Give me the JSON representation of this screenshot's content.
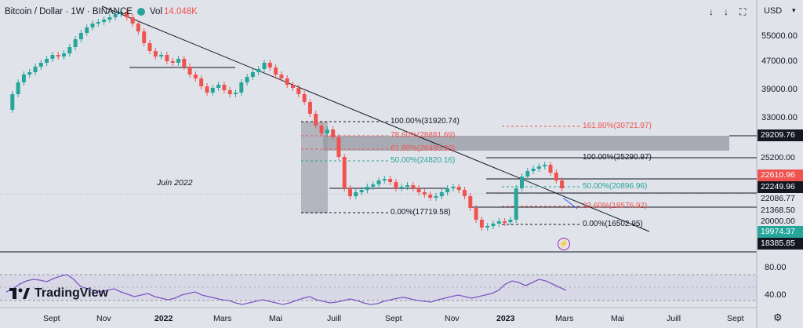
{
  "header": {
    "symbol": "Bitcoin / Dollar · 1W · BINANCE",
    "vol_label": "Vol",
    "vol_value": "14.048K"
  },
  "currency": "USD",
  "annotation": "Juin 2022",
  "price_axis": [
    "55000.00",
    "47000.00",
    "39000.00",
    "33000.00",
    "20000.00",
    "80.00",
    "40.00"
  ],
  "price_labels": {
    "p29209": "29209.76",
    "p25200": "25200.00",
    "p22610": "22610.96",
    "p22249": "22249.96",
    "p22086": "22086.77",
    "p21368": "21368.50",
    "p20000": "20000.00",
    "p19974": "19974.37",
    "p18385": "18385.85"
  },
  "fib_left": {
    "f100": "100.00%(31920.74)",
    "f786": "78.60%(28881.69)",
    "f618": "61.80%(26495.90)",
    "f50": "50.00%(24820.16)",
    "f0": "0.00%(17719.58)"
  },
  "fib_right": {
    "f1618": "161.80%(30721.97)",
    "f100": "100.00%(25290.97)",
    "f50": "50.00%(20896.96)",
    "f236": "23.60%(18576.92)",
    "f0": "0.00%(16502.95)"
  },
  "time_axis": [
    "Sept",
    "Nov",
    "2022",
    "Mars",
    "Mai",
    "Juill",
    "Sept",
    "Nov",
    "2023",
    "Mars",
    "Mai",
    "Juill",
    "Sept"
  ],
  "logo": "TradingView",
  "colors": {
    "up": "#26a69a",
    "down": "#ef5350",
    "rsi": "#7e57c2"
  },
  "icons": [
    "down-arrow-icon",
    "down-arrow-icon",
    "fullscreen-icon",
    "settings-icon",
    "lightning-icon"
  ]
}
